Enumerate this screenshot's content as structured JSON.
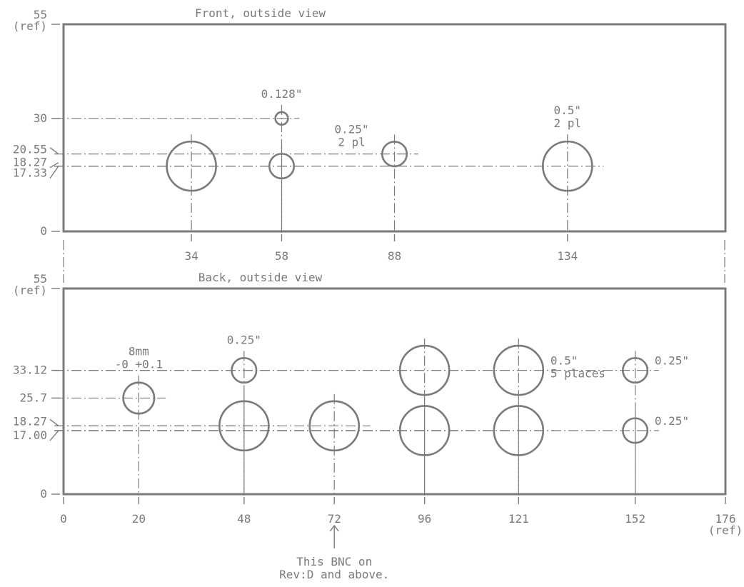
{
  "front": {
    "title": "Front, outside view",
    "y_ticks": [
      {
        "value": 55,
        "label": "55",
        "sub": "(ref)"
      },
      {
        "value": 30,
        "label": "30"
      },
      {
        "value": 20.55,
        "label": "20.55"
      },
      {
        "value": 18.27,
        "label": "18.27"
      },
      {
        "value": 17.33,
        "label": "17.33"
      },
      {
        "value": 0,
        "label": "0"
      }
    ],
    "x_ticks": [
      {
        "value": 34,
        "label": "34"
      },
      {
        "value": 58,
        "label": "58"
      },
      {
        "value": 88,
        "label": "88"
      },
      {
        "value": 134,
        "label": "134"
      }
    ],
    "holes": [
      {
        "x": 34,
        "y": 17.33,
        "diameter_in": 0.5
      },
      {
        "x": 58,
        "y": 17.33,
        "diameter_in": 0.25
      },
      {
        "x": 58,
        "y": 30,
        "diameter_in": 0.128
      },
      {
        "x": 88,
        "y": 20.55,
        "diameter_in": 0.25
      },
      {
        "x": 134,
        "y": 17.33,
        "diameter_in": 0.5
      }
    ],
    "callouts": [
      {
        "text": "0.128\"",
        "anchor_hole": 2
      },
      {
        "text": "0.25\"",
        "line2": "2 pl",
        "anchor_hole": 3
      },
      {
        "text": "0.5\"",
        "line2": "2 pl",
        "anchor_hole": 4
      }
    ]
  },
  "back": {
    "title": "Back, outside view",
    "y_ticks": [
      {
        "value": 55,
        "label": "55",
        "sub": "(ref)"
      },
      {
        "value": 33.12,
        "label": "33.12"
      },
      {
        "value": 25.7,
        "label": "25.7"
      },
      {
        "value": 18.27,
        "label": "18.27"
      },
      {
        "value": 17.0,
        "label": "17.00"
      },
      {
        "value": 0,
        "label": "0"
      }
    ],
    "x_ticks": [
      {
        "value": 0,
        "label": "0"
      },
      {
        "value": 20,
        "label": "20"
      },
      {
        "value": 48,
        "label": "48"
      },
      {
        "value": 72,
        "label": "72"
      },
      {
        "value": 96,
        "label": "96"
      },
      {
        "value": 121,
        "label": "121"
      },
      {
        "value": 152,
        "label": "152"
      },
      {
        "value": 176,
        "label": "176",
        "sub": "(ref)"
      }
    ],
    "holes": [
      {
        "x": 20,
        "y": 25.7,
        "diameter_in": 0.315
      },
      {
        "x": 48,
        "y": 33.12,
        "diameter_in": 0.25
      },
      {
        "x": 48,
        "y": 18.27,
        "diameter_in": 0.5
      },
      {
        "x": 72,
        "y": 18.27,
        "diameter_in": 0.5
      },
      {
        "x": 96,
        "y": 33.12,
        "diameter_in": 0.5
      },
      {
        "x": 96,
        "y": 17.0,
        "diameter_in": 0.5
      },
      {
        "x": 121,
        "y": 33.12,
        "diameter_in": 0.5
      },
      {
        "x": 121,
        "y": 17.0,
        "diameter_in": 0.5
      },
      {
        "x": 152,
        "y": 33.12,
        "diameter_in": 0.25
      },
      {
        "x": 152,
        "y": 17.0,
        "diameter_in": 0.25
      }
    ],
    "callouts": [
      {
        "text": "8mm",
        "line2": "-0 +0.1",
        "anchor_hole": 0
      },
      {
        "text": "0.25\"",
        "anchor_hole": 1
      },
      {
        "text": "0.5\"",
        "line2": "5 places",
        "anchor_hole": 6
      },
      {
        "text": "0.25\"",
        "anchor_hole": 8
      },
      {
        "text": "0.25\"",
        "anchor_hole": 9
      }
    ],
    "note": {
      "line1": "This BNC on",
      "line2": "Rev:D and above.",
      "x": 72
    }
  }
}
